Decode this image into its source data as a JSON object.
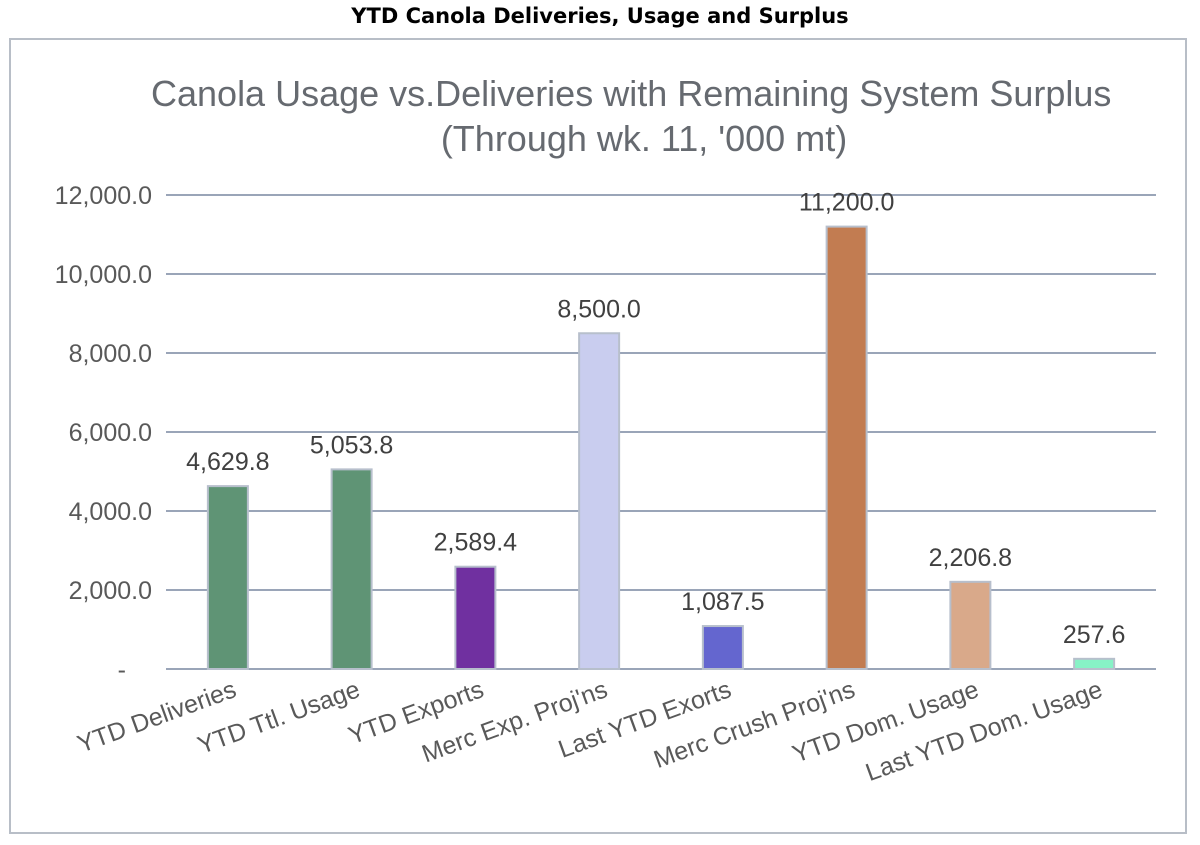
{
  "page": {
    "title": "YTD Canola Deliveries, Usage and Surplus"
  },
  "chart_data": {
    "type": "bar",
    "title_line1": "Canola Usage vs.Deliveries with Remaining System Surplus",
    "title_line2": "(Through wk. 11,  '000 mt)",
    "categories": [
      "YTD Deliveries",
      "YTD Ttl. Usage",
      "YTD Exports",
      "Merc Exp. Proj'ns",
      "Last YTD Exorts",
      "Merc Crush Proj'ns",
      "YTD Dom. Usage",
      "Last YTD Dom. Usage"
    ],
    "values": [
      4629.8,
      5053.8,
      2589.4,
      8500.0,
      1087.5,
      11200.0,
      2206.8,
      257.6
    ],
    "data_labels": [
      "4,629.8",
      "5,053.8",
      "2,589.4",
      "8,500.0",
      "1,087.5",
      "11,200.0",
      "2,206.8",
      "257.6"
    ],
    "colors": [
      "#5f9475",
      "#5f9475",
      "#7030a0",
      "#c9cdef",
      "#6466cf",
      "#c27c51",
      "#d9a98a",
      "#87f2c6"
    ],
    "y_ticks": [
      0,
      2000,
      4000,
      6000,
      8000,
      10000,
      12000
    ],
    "y_tick_labels": [
      "-",
      "2,000.0",
      "4,000.0",
      "6,000.0",
      "8,000.0",
      "10,000.0",
      "12,000.0"
    ],
    "ylim": [
      0,
      12000
    ],
    "xlabel": "",
    "ylabel": "",
    "grid": true,
    "legend": "none"
  }
}
